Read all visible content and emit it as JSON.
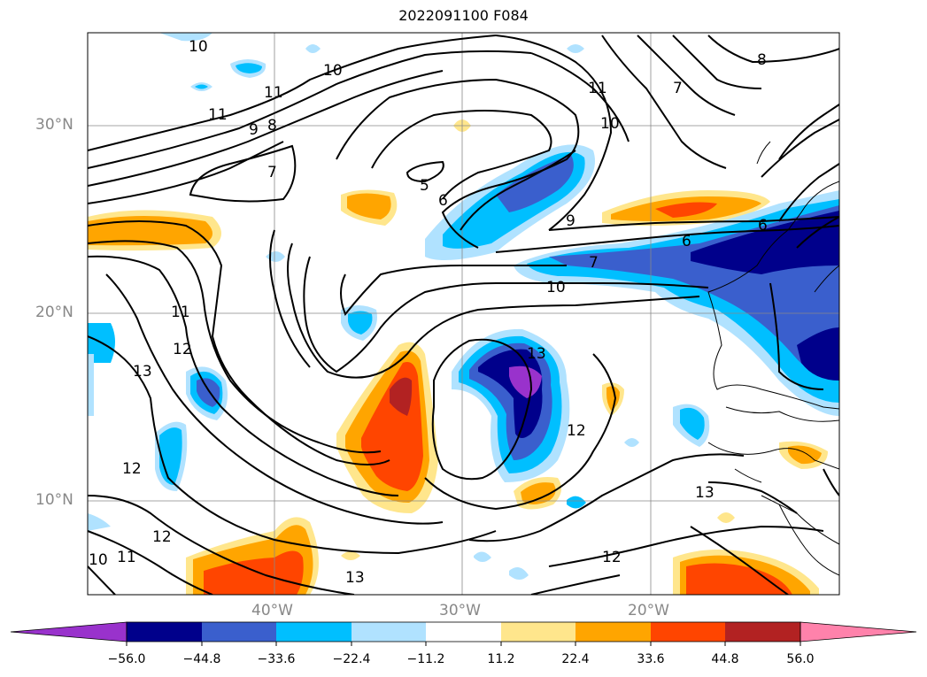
{
  "title": "2022091100 F084",
  "axes": {
    "lat_labels": [
      "30°N",
      "20°N",
      "10°N"
    ],
    "lon_labels": [
      "40°W",
      "30°W",
      "20°W"
    ]
  },
  "colorbar": {
    "tick_labels": [
      "−56.0",
      "−44.8",
      "−33.6",
      "−22.4",
      "−11.2",
      "11.2",
      "22.4",
      "33.6",
      "44.8",
      "56.0"
    ],
    "colors": [
      "#9932cc",
      "#00008b",
      "#3a5fcd",
      "#00bfff",
      "#b0e2ff",
      "#ffffff",
      "#ffe68c",
      "#ffa500",
      "#ff4500",
      "#b22222",
      "#ff82ab"
    ]
  },
  "contour_labels": [
    "10",
    "10",
    "11",
    "11",
    "9",
    "8",
    "7",
    "5",
    "6",
    "11",
    "10",
    "7",
    "8",
    "9",
    "6",
    "6",
    "7",
    "10",
    "11",
    "12",
    "13",
    "12",
    "13",
    "12",
    "12",
    "11",
    "10",
    "13",
    "12",
    "13"
  ]
}
